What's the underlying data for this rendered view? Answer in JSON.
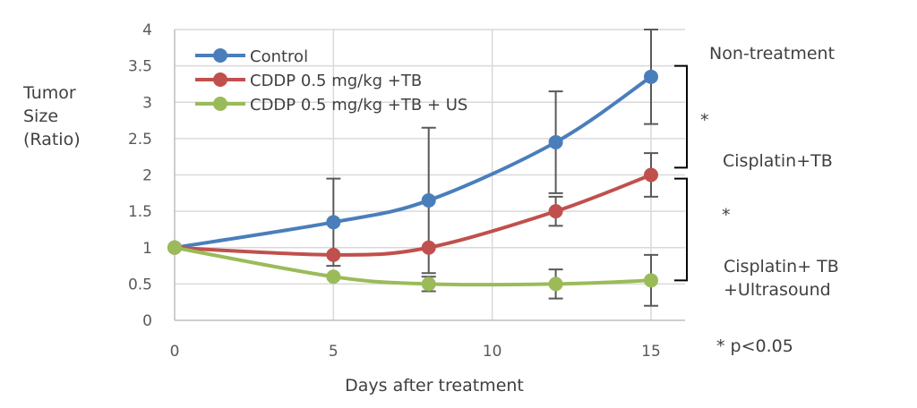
{
  "chart_data": {
    "type": "line",
    "title": "",
    "xlabel": "Days after treatment",
    "ylabel_lines": [
      "Tumor",
      "Size",
      "(Ratio)"
    ],
    "xlim": [
      0,
      15
    ],
    "ylim": [
      0,
      4
    ],
    "x_ticks": [
      0,
      5,
      10,
      15
    ],
    "x_tick_labels": [
      "0",
      "5",
      "10",
      "15"
    ],
    "y_ticks": [
      0,
      0.5,
      1,
      1.5,
      2,
      2.5,
      3,
      3.5,
      4
    ],
    "y_tick_labels": [
      "0",
      "0.5",
      "1",
      "1.5",
      "2",
      "2.5",
      "3",
      "3.5",
      "4"
    ],
    "grid": true,
    "legend_position": "top-left",
    "smooth": true,
    "series": [
      {
        "name": "Control",
        "color": "#4a7ebb",
        "x": [
          0,
          5,
          8,
          12,
          15
        ],
        "y": [
          1,
          1.35,
          1.65,
          2.45,
          3.35
        ],
        "error_upper": [
          null,
          1.95,
          2.65,
          3.15,
          4.0
        ],
        "error_lower": [
          null,
          0.75,
          0.65,
          1.75,
          2.7
        ]
      },
      {
        "name": "CDDP 0.5 mg/kg +TB",
        "color": "#c0504d",
        "x": [
          0,
          5,
          8,
          12,
          15
        ],
        "y": [
          1,
          0.9,
          1.0,
          1.5,
          2.0
        ],
        "error_upper": [
          null,
          null,
          null,
          1.7,
          2.3
        ],
        "error_lower": [
          null,
          null,
          null,
          1.3,
          1.7
        ]
      },
      {
        "name": "CDDP 0.5 mg/kg +TB + US",
        "color": "#9bbb59",
        "x": [
          0,
          5,
          8,
          12,
          15
        ],
        "y": [
          1,
          0.6,
          0.5,
          0.5,
          0.55
        ],
        "error_upper": [
          null,
          null,
          0.6,
          0.7,
          0.9
        ],
        "error_lower": [
          null,
          null,
          0.4,
          0.3,
          0.2
        ]
      }
    ],
    "annotations": {
      "group_labels": [
        "Non-treatment",
        "Cisplatin+TB",
        "Cisplatin+ TB",
        "+Ultrasound"
      ],
      "brackets": [
        {
          "from_y": 3.5,
          "to_y": 2.1,
          "label": "*"
        },
        {
          "from_y": 1.95,
          "to_y": 0.55,
          "label": "*"
        }
      ],
      "significance_note": "* p<0.05"
    }
  }
}
